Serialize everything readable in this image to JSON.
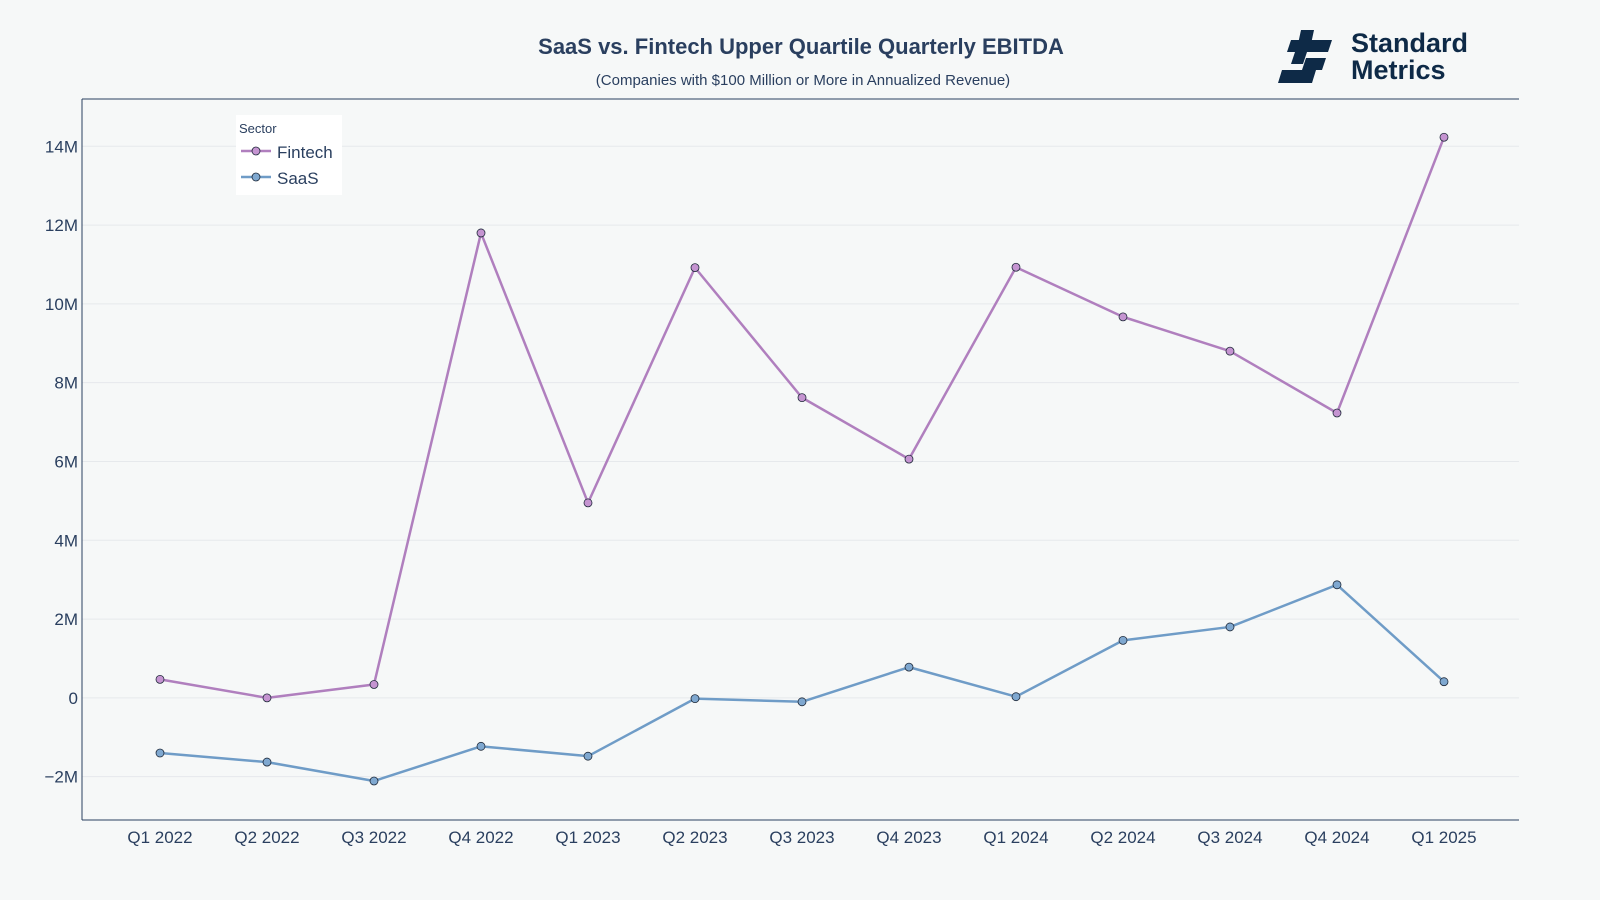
{
  "chart_data": {
    "type": "line",
    "title": "SaaS vs. Fintech Upper Quartile Quarterly EBITDA",
    "subtitle": "(Companies with $100 Million or More in Annualized Revenue)",
    "xlabel": "",
    "ylabel": "",
    "categories": [
      "Q1 2022",
      "Q2 2022",
      "Q3 2022",
      "Q4 2022",
      "Q1 2023",
      "Q2 2023",
      "Q3 2023",
      "Q4 2023",
      "Q1 2024",
      "Q2 2024",
      "Q3 2024",
      "Q4 2024",
      "Q1 2025"
    ],
    "ylim": [
      -3100000,
      15200000
    ],
    "yticks": [
      -2000000,
      0,
      2000000,
      4000000,
      6000000,
      8000000,
      10000000,
      12000000,
      14000000
    ],
    "ytick_labels": [
      "−2M",
      "0",
      "2M",
      "4M",
      "6M",
      "8M",
      "10M",
      "12M",
      "14M"
    ],
    "grid": true,
    "legend": {
      "title": "Sector",
      "position": "top-left"
    },
    "series": [
      {
        "name": "Fintech",
        "color": "#b07fbe",
        "marker_color": "#c594d1",
        "values": [
          470000,
          0,
          340000,
          11800000,
          4950000,
          10920000,
          7620000,
          6060000,
          10930000,
          9670000,
          8800000,
          7230000,
          14230000
        ]
      },
      {
        "name": "SaaS",
        "color": "#6f9cc7",
        "marker_color": "#7fa8d0",
        "values": [
          -1400000,
          -1630000,
          -2110000,
          -1230000,
          -1480000,
          -20000,
          -100000,
          780000,
          30000,
          1460000,
          1800000,
          2870000,
          410000
        ]
      }
    ]
  },
  "logo": {
    "line1": "Standard",
    "line2": "Metrics",
    "icon": "standard-metrics-logo-icon",
    "color": "#0e2a47"
  }
}
